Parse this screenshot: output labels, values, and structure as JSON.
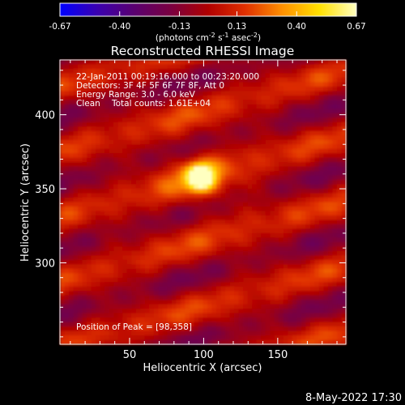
{
  "chart_data": {
    "type": "heatmap",
    "title": "Reconstructed RHESSI Image",
    "xlabel": "Heliocentric X (arcsec)",
    "ylabel": "Heliocentric Y (arcsec)",
    "xlim": [
      3,
      196
    ],
    "ylim": [
      245,
      437
    ],
    "x_ticks": [
      50,
      100,
      150
    ],
    "y_ticks": [
      300,
      350,
      400
    ],
    "colorbar": {
      "min": -0.67,
      "max": 0.67,
      "ticks": [
        "-0.67",
        "-0.40",
        "-0.13",
        "0.13",
        "0.40",
        "0.67"
      ],
      "unit_label": "(photons cm-2 s-1 asec-2)",
      "colormap": [
        "#0000ff",
        "#3a00b0",
        "#5a0070",
        "#7a0040",
        "#b00000",
        "#e03000",
        "#ff9000",
        "#ffe000",
        "#ffffc0"
      ]
    },
    "peak": {
      "x": 98,
      "y": 358,
      "value": 0.67
    },
    "annotations": {
      "time": "22-Jan-2011 00:19:16.000 to 00:23:20.000",
      "detectors": "Detectors: 3F 4F 5F 6F 7F 8F, Att 0",
      "energy": "Energy Range: 3.0 - 6.0 keV",
      "method": "Clean",
      "counts": "Total counts: 1.61E+04",
      "peak_label": "Position of Peak = [98,358]"
    }
  },
  "footer": {
    "timestamp": "8-May-2022 17:30"
  }
}
